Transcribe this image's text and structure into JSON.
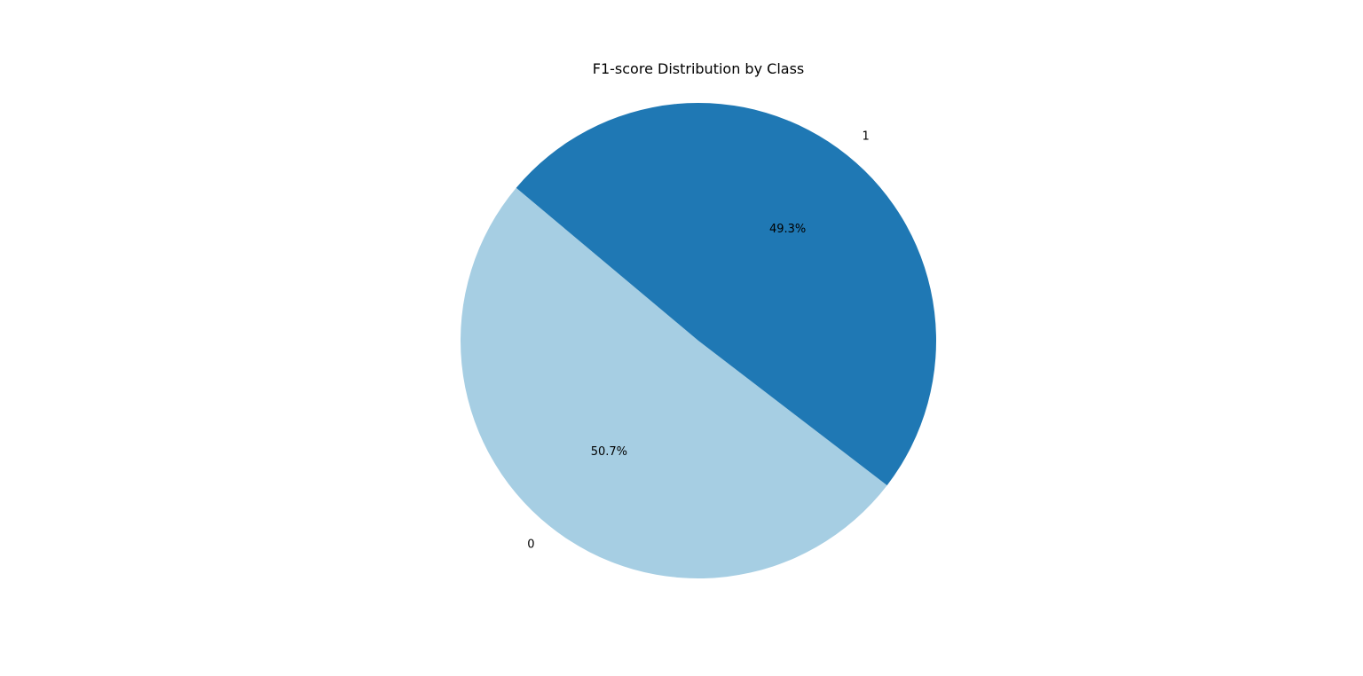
{
  "chart_data": {
    "type": "pie",
    "title": "F1-score Distribution by Class",
    "slices": [
      {
        "label": "0",
        "percent_label": "50.7%",
        "value": 50.7,
        "color": "#a6cee3"
      },
      {
        "label": "1",
        "percent_label": "49.3%",
        "value": 49.3,
        "color": "#1f78b4"
      }
    ],
    "start_angle_deg": 140,
    "direction": "counterclockwise",
    "legend": "none"
  }
}
